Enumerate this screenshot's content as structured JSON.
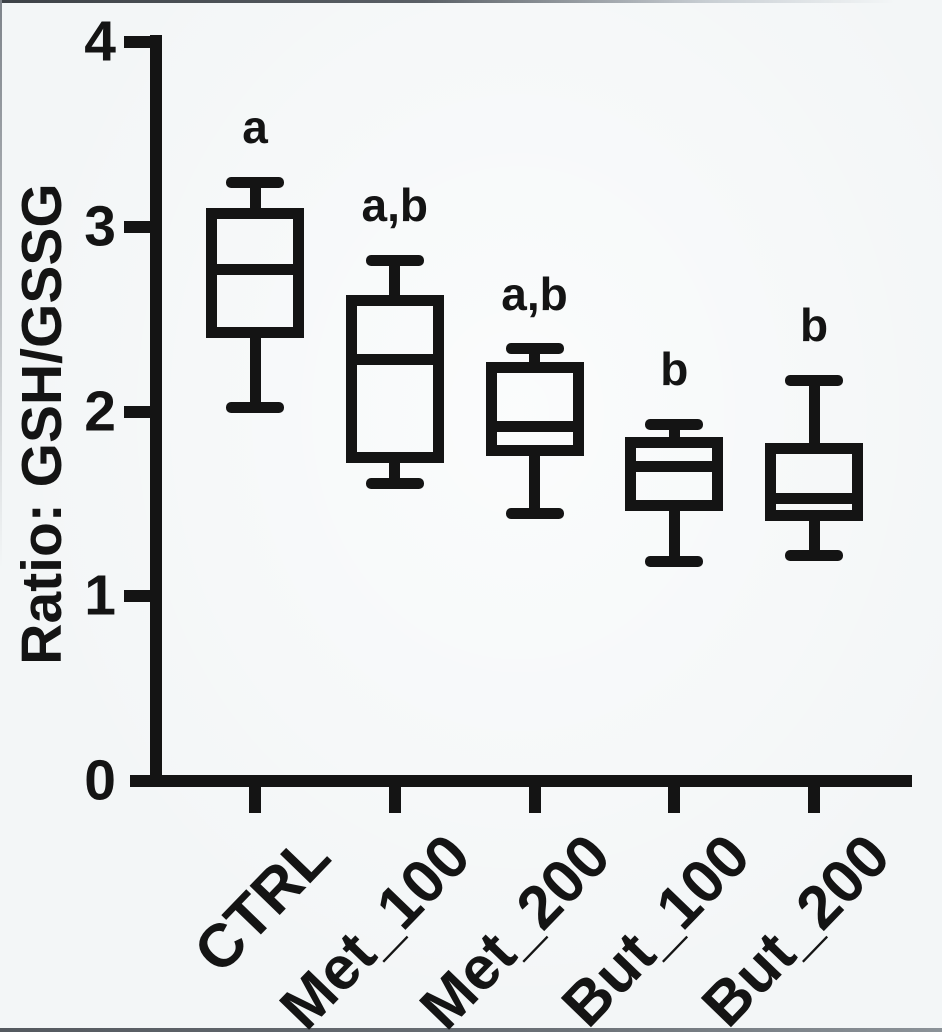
{
  "figure": {
    "background": "#f3f6f7",
    "ink": "#141414"
  },
  "chart_data": {
    "type": "box",
    "title": "",
    "xlabel": "",
    "ylabel": "Ratio: GSH/GSSG",
    "ylim": [
      0,
      4
    ],
    "yticks": [
      0,
      1,
      2,
      3,
      4
    ],
    "grid": false,
    "legend": false,
    "categories": [
      "CTRL",
      "Met_100",
      "Met_200",
      "But_100",
      "But_200"
    ],
    "series": [
      {
        "name": "CTRL",
        "min": 2.02,
        "q1": 2.4,
        "median": 2.77,
        "q3": 3.1,
        "max": 3.24,
        "significance": "a"
      },
      {
        "name": "Met_100",
        "min": 1.61,
        "q1": 1.72,
        "median": 2.28,
        "q3": 2.63,
        "max": 2.82,
        "significance": "a,b"
      },
      {
        "name": "Met_200",
        "min": 1.45,
        "q1": 1.76,
        "median": 1.92,
        "q3": 2.27,
        "max": 2.34,
        "significance": "a,b"
      },
      {
        "name": "But_100",
        "min": 1.19,
        "q1": 1.46,
        "median": 1.7,
        "q3": 1.86,
        "max": 1.93,
        "significance": "b"
      },
      {
        "name": "But_200",
        "min": 1.22,
        "q1": 1.41,
        "median": 1.53,
        "q3": 1.83,
        "max": 2.17,
        "significance": "b"
      }
    ]
  }
}
